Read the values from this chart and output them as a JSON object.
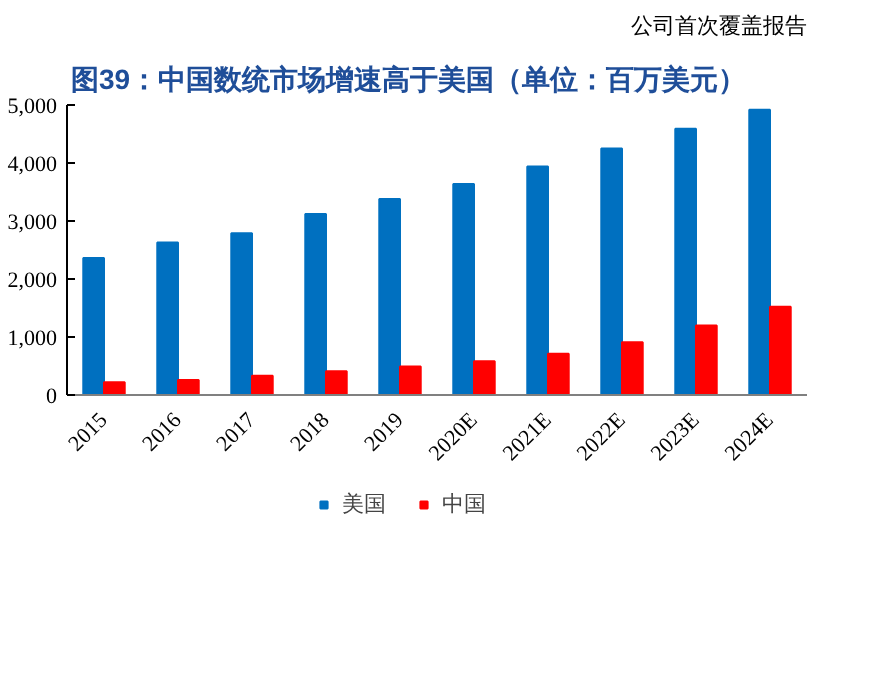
{
  "chart_data": {
    "type": "bar",
    "title": "图39：中国数统市场增速高于美国（单位：百万美元）",
    "annotations": [
      "公司首次覆盖报告"
    ],
    "categories": [
      "2015",
      "2016",
      "2017",
      "2018",
      "2019",
      "2020E",
      "2021E",
      "2022E",
      "2023E",
      "2024E"
    ],
    "series": [
      {
        "name": "美国",
        "color": "#0070c0",
        "values": [
          2360,
          2630,
          2790,
          3120,
          3380,
          3640,
          3940,
          4250,
          4590,
          4920
        ]
      },
      {
        "name": "中国",
        "color": "#ff0000",
        "values": [
          220,
          260,
          330,
          410,
          490,
          580,
          710,
          910,
          1200,
          1520
        ]
      }
    ],
    "ylim": [
      0,
      5000
    ],
    "yticks": [
      {
        "value": 0,
        "label": "0"
      },
      {
        "value": 1000,
        "label": "1,000"
      },
      {
        "value": 2000,
        "label": "2,000"
      },
      {
        "value": 3000,
        "label": "3,000"
      },
      {
        "value": 4000,
        "label": "4,000"
      },
      {
        "value": 5000,
        "label": "5,000"
      }
    ],
    "grid": false,
    "legend": "bottom"
  }
}
